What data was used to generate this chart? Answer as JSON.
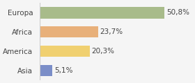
{
  "categories": [
    "Europa",
    "Africa",
    "America",
    "Asia"
  ],
  "values": [
    50.8,
    23.7,
    20.3,
    5.1
  ],
  "labels": [
    "50,8%",
    "23,7%",
    "20,3%",
    "5,1%"
  ],
  "bar_colors": [
    "#a8bb8a",
    "#e8b07a",
    "#f0d070",
    "#7b8ec8"
  ],
  "background_color": "#f5f5f5",
  "xlim": [
    0,
    62
  ],
  "label_fontsize": 7.5,
  "category_fontsize": 7.5
}
